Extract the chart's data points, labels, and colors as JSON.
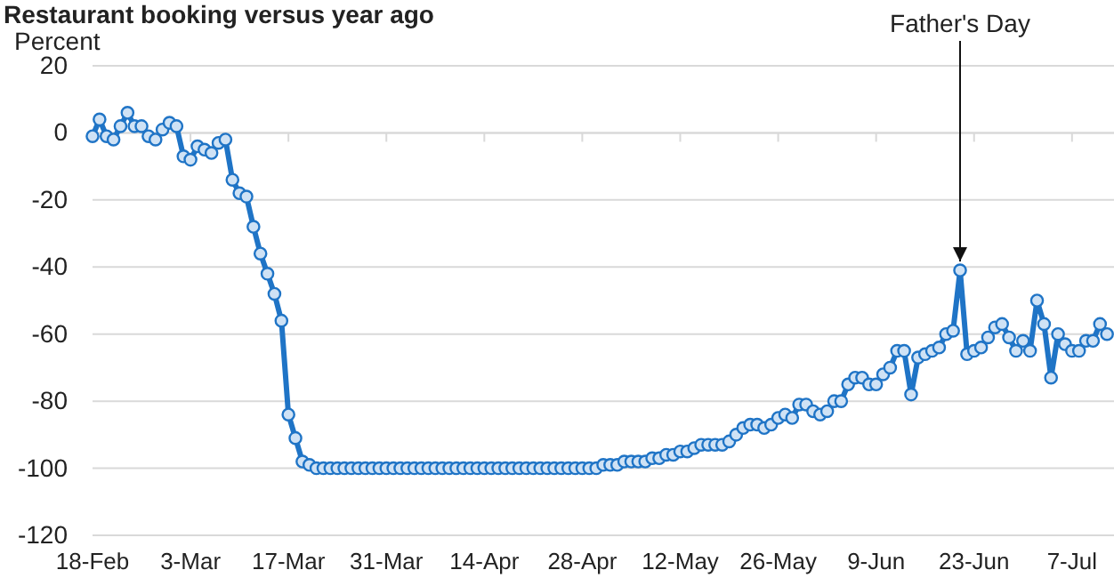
{
  "chart_data": {
    "type": "line",
    "title": "Restaurant booking versus year ago",
    "ylabel": "Percent",
    "x": [
      "--02-18",
      "--02-19",
      "--02-20",
      "--02-21",
      "--02-22",
      "--02-23",
      "--02-24",
      "--02-25",
      "--02-26",
      "--02-27",
      "--02-28",
      "--02-29",
      "--03-01",
      "--03-02",
      "--03-03",
      "--03-04",
      "--03-05",
      "--03-06",
      "--03-07",
      "--03-08",
      "--03-09",
      "--03-10",
      "--03-11",
      "--03-12",
      "--03-13",
      "--03-14",
      "--03-15",
      "--03-16",
      "--03-17",
      "--03-18",
      "--03-19",
      "--03-20",
      "--03-21",
      "--03-22",
      "--03-23",
      "--03-24",
      "--03-25",
      "--03-26",
      "--03-27",
      "--03-28",
      "--03-29",
      "--03-30",
      "--03-31",
      "--04-01",
      "--04-02",
      "--04-03",
      "--04-04",
      "--04-05",
      "--04-06",
      "--04-07",
      "--04-08",
      "--04-09",
      "--04-10",
      "--04-11",
      "--04-12",
      "--04-13",
      "--04-14",
      "--04-15",
      "--04-16",
      "--04-17",
      "--04-18",
      "--04-19",
      "--04-20",
      "--04-21",
      "--04-22",
      "--04-23",
      "--04-24",
      "--04-25",
      "--04-26",
      "--04-27",
      "--04-28",
      "--04-29",
      "--04-30",
      "--05-01",
      "--05-02",
      "--05-03",
      "--05-04",
      "--05-05",
      "--05-06",
      "--05-07",
      "--05-08",
      "--05-09",
      "--05-10",
      "--05-11",
      "--05-12",
      "--05-13",
      "--05-14",
      "--05-15",
      "--05-16",
      "--05-17",
      "--05-18",
      "--05-19",
      "--05-20",
      "--05-21",
      "--05-22",
      "--05-23",
      "--05-24",
      "--05-25",
      "--05-26",
      "--05-27",
      "--05-28",
      "--05-29",
      "--05-30",
      "--05-31",
      "--06-01",
      "--06-02",
      "--06-03",
      "--06-04",
      "--06-05",
      "--06-06",
      "--06-07",
      "--06-08",
      "--06-09",
      "--06-10",
      "--06-11",
      "--06-12",
      "--06-13",
      "--06-14",
      "--06-15",
      "--06-16",
      "--06-17",
      "--06-18",
      "--06-19",
      "--06-20",
      "--06-21",
      "--06-22",
      "--06-23",
      "--06-24",
      "--06-25",
      "--06-26",
      "--06-27",
      "--06-28",
      "--06-29",
      "--06-30",
      "--07-01",
      "--07-02",
      "--07-03",
      "--07-04",
      "--07-05",
      "--07-06",
      "--07-07",
      "--07-08",
      "--07-09",
      "--07-10",
      "--07-11",
      "--07-12"
    ],
    "series": [
      {
        "color": "#1f74c6",
        "values": [
          -1,
          4,
          -1,
          -2,
          2,
          6,
          2,
          2,
          -1,
          -2,
          1,
          3,
          2,
          -7,
          -8,
          -4,
          -5,
          -6,
          -3,
          -2,
          -14,
          -18,
          -19,
          -28,
          -36,
          -42,
          -48,
          -56,
          -84,
          -91,
          -98,
          -99,
          -100,
          -100,
          -100,
          -100,
          -100,
          -100,
          -100,
          -100,
          -100,
          -100,
          -100,
          -100,
          -100,
          -100,
          -100,
          -100,
          -100,
          -100,
          -100,
          -100,
          -100,
          -100,
          -100,
          -100,
          -100,
          -100,
          -100,
          -100,
          -100,
          -100,
          -100,
          -100,
          -100,
          -100,
          -100,
          -100,
          -100,
          -100,
          -100,
          -100,
          -100,
          -99,
          -99,
          -99,
          -98,
          -98,
          -98,
          -98,
          -97,
          -97,
          -96,
          -96,
          -95,
          -95,
          -94,
          -93,
          -93,
          -93,
          -93,
          -92,
          -90,
          -88,
          -87,
          -87,
          -88,
          -87,
          -85,
          -84,
          -85,
          -81,
          -81,
          -83,
          -84,
          -83,
          -80,
          -80,
          -75,
          -73,
          -73,
          -75,
          -75,
          -72,
          -70,
          -65,
          -65,
          -78,
          -67,
          -66,
          -65,
          -64,
          -60,
          -59,
          -41,
          -66,
          -65,
          -64,
          -61,
          -58,
          -57,
          -61,
          -65,
          -62,
          -65,
          -50,
          -57,
          -73,
          -60,
          -63,
          -65,
          -65,
          -62,
          -62,
          -57,
          -60
        ]
      }
    ],
    "xlim": [
      "--02-18",
      "--07-13"
    ],
    "xticks": [
      {
        "value": "--02-18",
        "label": "18-Feb"
      },
      {
        "value": "--03-03",
        "label": "3-Mar"
      },
      {
        "value": "--03-17",
        "label": "17-Mar"
      },
      {
        "value": "--03-31",
        "label": "31-Mar"
      },
      {
        "value": "--04-14",
        "label": "14-Apr"
      },
      {
        "value": "--04-28",
        "label": "28-Apr"
      },
      {
        "value": "--05-12",
        "label": "12-May"
      },
      {
        "value": "--05-26",
        "label": "26-May"
      },
      {
        "value": "--06-09",
        "label": "9-Jun"
      },
      {
        "value": "--06-23",
        "label": "23-Jun"
      },
      {
        "value": "--07-07",
        "label": "7-Jul"
      }
    ],
    "ylim": [
      -120,
      20
    ],
    "yticks": [
      -120,
      -100,
      -80,
      -60,
      -40,
      -20,
      0,
      20
    ],
    "grid": "y",
    "marker": "circle",
    "line_style": "solid",
    "annotations": [
      {
        "text": "Father's Day",
        "x": "--06-21",
        "y": -41
      }
    ]
  }
}
